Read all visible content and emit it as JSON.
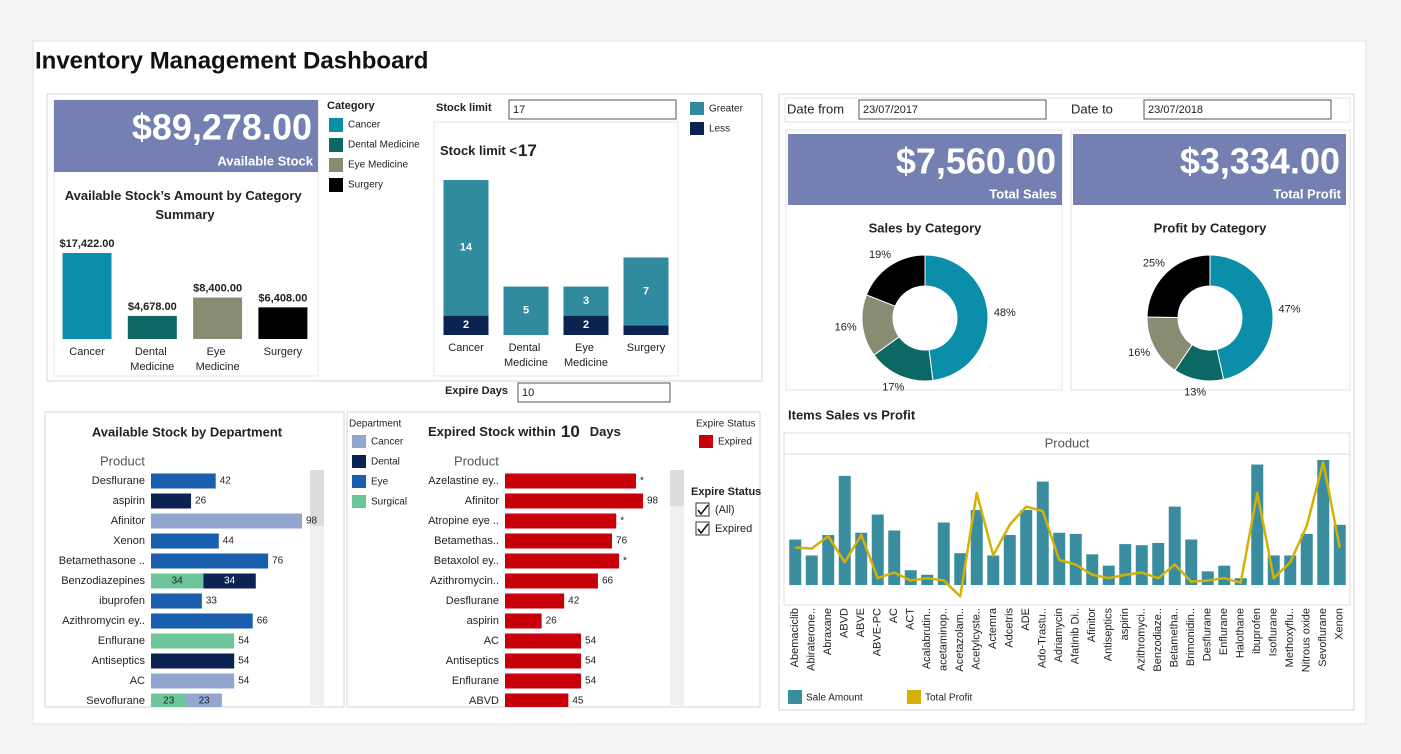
{
  "header": {
    "title": "Inventory Management Dashboard"
  },
  "kpis": [
    {
      "value": "$89,278.00",
      "label": "Available Stock"
    },
    {
      "value": "$7,560.00",
      "label": "Total Sales"
    },
    {
      "value": "$3,334.00",
      "label": "Total Profit"
    }
  ],
  "filters": {
    "stock_limit": {
      "label": "Stock limit",
      "value": "17"
    },
    "expire_days": {
      "label": "Expire Days",
      "value": "10"
    },
    "date_from": {
      "label": "Date from",
      "value": "23/07/2017"
    },
    "date_to": {
      "label": "Date to",
      "value": "23/07/2018"
    },
    "expire_status": {
      "title": "Expire Status",
      "options": [
        {
          "label": "(All)",
          "checked": true
        },
        {
          "label": "Expired",
          "checked": true
        }
      ]
    }
  },
  "chart_data": [
    {
      "type": "bar",
      "title": "Available Stock’s Amount by Category Summary",
      "categories": [
        "Cancer",
        "Dental Medicine",
        "Eye Medicine",
        "Surgery"
      ],
      "values": [
        17422,
        4678,
        8400,
        6408
      ],
      "value_labels": [
        "$17,422.00",
        "$4,678.00",
        "$8,400.00",
        "$6,408.00"
      ],
      "colors": [
        "#0b8ea9",
        "#0b6862",
        "#8a8b73",
        "#000000"
      ],
      "legend_title": "Category"
    },
    {
      "type": "bar",
      "stacked": true,
      "title": "Stock limit <",
      "categories": [
        "Cancer",
        "Dental Medicine",
        "Eye Medicine",
        "Surgery"
      ],
      "series": [
        {
          "name": "Greater",
          "color": "#2f8b9d",
          "values": [
            14,
            5,
            3,
            7
          ]
        },
        {
          "name": "Less",
          "color": "#0c2250",
          "values": [
            2,
            null,
            2,
            1
          ],
          "value_labels": [
            "2",
            null,
            "2",
            null
          ]
        }
      ]
    },
    {
      "type": "barh",
      "stacked": true,
      "title": "Available Stock by Department",
      "axis_title": "Product",
      "categories": [
        "Desflurane",
        "aspirin",
        "Afinitor",
        "Xenon",
        "Betamethasone ..",
        "Benzodiazepines",
        "ibuprofen",
        "Azithromycin ey..",
        "Enflurane",
        "Antiseptics",
        "AC",
        "Sevoflurane"
      ],
      "legend_title": "Department",
      "series": [
        {
          "name": "Cancer",
          "color": "#92a6cf",
          "values": [
            null,
            null,
            98,
            null,
            null,
            null,
            null,
            null,
            null,
            null,
            54,
            23
          ]
        },
        {
          "name": "Dental",
          "color": "#0c2250",
          "values": [
            null,
            26,
            null,
            null,
            null,
            34,
            null,
            null,
            null,
            54,
            null,
            null
          ]
        },
        {
          "name": "Eye",
          "color": "#1a5eae",
          "values": [
            42,
            null,
            null,
            44,
            76,
            null,
            33,
            66,
            null,
            null,
            null,
            null
          ]
        },
        {
          "name": "Surgical",
          "color": "#6cc59b",
          "values": [
            null,
            null,
            null,
            null,
            null,
            34,
            null,
            null,
            54,
            null,
            null,
            23
          ]
        }
      ]
    },
    {
      "type": "barh",
      "title": "Expired Stock within",
      "title_end": "Days",
      "axis_title": "Product",
      "categories": [
        "Azelastine ey..",
        "Afinitor",
        "Atropine eye ..",
        "Betamethas..",
        "Betaxolol ey..",
        "Azithromycin..",
        "Desflurane",
        "aspirin",
        "AC",
        "Antiseptics",
        "Enflurane",
        "ABVD"
      ],
      "legend_title": "Expire Status",
      "series": [
        {
          "name": "Expired",
          "color": "#c8000a",
          "values": [
            93,
            98,
            79,
            76,
            81,
            66,
            42,
            26,
            54,
            54,
            54,
            45
          ],
          "value_labels": [
            "*",
            "98",
            "*",
            "76",
            "*",
            "66",
            "42",
            "26",
            "54",
            "54",
            "54",
            "45"
          ]
        }
      ]
    },
    {
      "type": "donut",
      "title": "Sales by Category",
      "categories": [
        "Cancer",
        "Dental Medicine",
        "Eye Medicine",
        "Surgery"
      ],
      "values": [
        48,
        17,
        16,
        19
      ],
      "value_labels": [
        "48%",
        "17%",
        "16%",
        "19%"
      ],
      "colors": [
        "#0b8ea9",
        "#0b6862",
        "#8a8b73",
        "#000000"
      ]
    },
    {
      "type": "donut",
      "title": "Profit by Category",
      "categories": [
        "Cancer",
        "Dental Medicine",
        "Eye Medicine",
        "Surgery"
      ],
      "values": [
        47,
        13,
        16,
        25
      ],
      "value_labels": [
        "47%",
        "13%",
        "16%",
        "25%"
      ],
      "colors": [
        "#0b8ea9",
        "#0b6862",
        "#8a8b73",
        "#000000"
      ]
    },
    {
      "type": "bar_line",
      "title": "Items Sales vs Profit",
      "axis_title": "Product",
      "categories": [
        "Abemaciclib",
        "Abiraterone..",
        "Abraxane",
        "ABVD",
        "ABVE",
        "ABVE-PC",
        "AC",
        "ACT",
        "Acalabrutin..",
        "acetaminop..",
        "Acetazolam..",
        "Acetylcyste..",
        "Actemra",
        "Adcetris",
        "ADE",
        "Ado-Trastu..",
        "Adriamycin",
        "Afatinib Di..",
        "Afinitor",
        "Antiseptics",
        "aspirin",
        "Azithromyci..",
        "Benzodiaze..",
        "Betametha..",
        "Brimonidin..",
        "Desflurane",
        "Enflurane",
        "Halothane",
        "ibuprofen",
        "Isoflurane",
        "Methoxyflu..",
        "Nitrous oxide",
        "Sevoflurane",
        "Xenon"
      ],
      "series": [
        {
          "name": "Sale Amount",
          "type": "bar",
          "color": "#3a8d9f",
          "values": [
            200,
            130,
            220,
            480,
            230,
            310,
            240,
            65,
            45,
            275,
            140,
            330,
            130,
            220,
            330,
            455,
            230,
            225,
            135,
            85,
            180,
            175,
            185,
            345,
            200,
            60,
            85,
            30,
            530,
            130,
            130,
            225,
            550,
            265
          ]
        },
        {
          "name": "Total Profit",
          "type": "line",
          "color": "#d4b106",
          "values": [
            165,
            160,
            215,
            100,
            220,
            30,
            55,
            20,
            30,
            20,
            -50,
            405,
            130,
            265,
            345,
            325,
            110,
            90,
            45,
            30,
            45,
            55,
            30,
            90,
            15,
            20,
            30,
            10,
            405,
            30,
            100,
            260,
            540,
            165
          ]
        }
      ]
    }
  ]
}
